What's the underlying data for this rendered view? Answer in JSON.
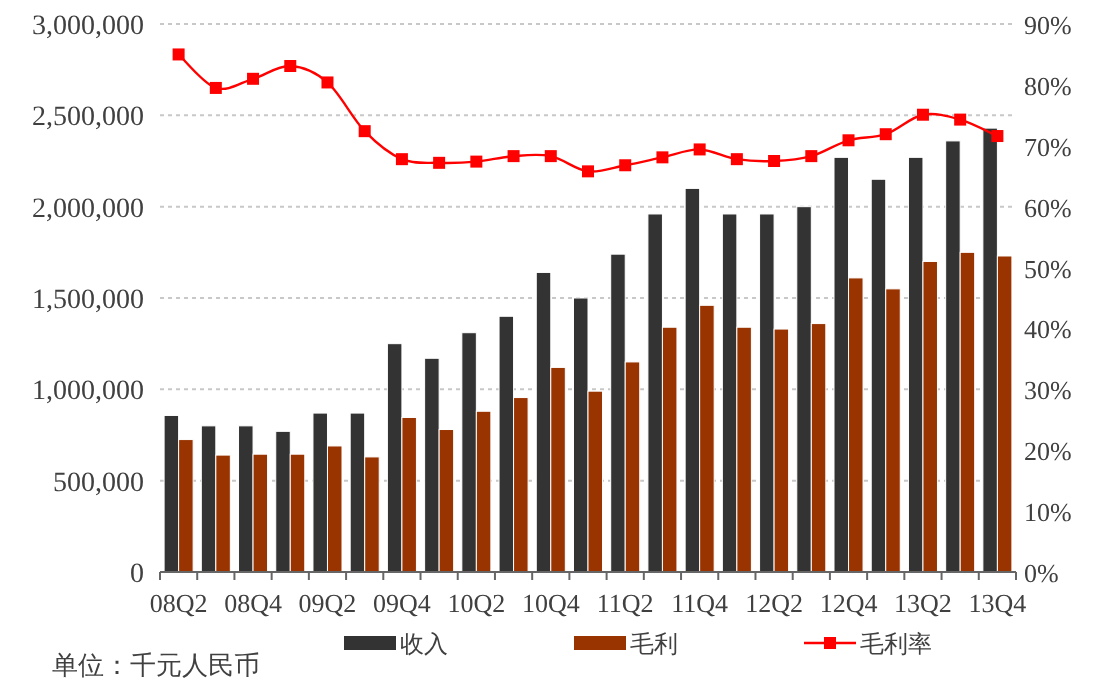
{
  "chart_data": {
    "type": "bar",
    "categories": [
      "08Q2",
      null,
      "08Q4",
      null,
      "09Q2",
      null,
      "09Q4",
      null,
      "10Q2",
      null,
      "10Q4",
      null,
      "11Q2",
      null,
      "11Q4",
      null,
      "12Q2",
      null,
      "12Q4",
      null,
      "13Q2",
      null,
      "13Q4"
    ],
    "series": [
      {
        "name": "收入",
        "color": "#333333",
        "values": [
          857000,
          800000,
          800000,
          770000,
          870000,
          870000,
          1250000,
          1170000,
          1310000,
          1400000,
          1640000,
          1500000,
          1740000,
          1960000,
          2100000,
          1960000,
          1960000,
          2000000,
          2270000,
          2150000,
          2270000,
          2360000,
          2430000
        ]
      },
      {
        "name": "毛利",
        "color": "#993300",
        "values": [
          725000,
          640000,
          645000,
          645000,
          690000,
          630000,
          846000,
          780000,
          880000,
          955000,
          1120000,
          990000,
          1150000,
          1340000,
          1460000,
          1340000,
          1330000,
          1360000,
          1610000,
          1550000,
          1700000,
          1750000,
          1730000
        ]
      },
      {
        "name": "毛利率",
        "type": "line",
        "axis": "y2",
        "color": "#ff0000",
        "marker": "square",
        "values": [
          85.0,
          79.5,
          81.0,
          83.1,
          80.4,
          72.4,
          67.8,
          67.2,
          67.4,
          68.3,
          68.3,
          65.8,
          66.8,
          68.1,
          69.4,
          67.8,
          67.5,
          68.3,
          70.9,
          71.9,
          75.1,
          74.3,
          71.6
        ]
      }
    ],
    "ylim": [
      0,
      3000000
    ],
    "yticks": [
      0,
      {
        "value": 500000,
        "label": "500,000"
      },
      {
        "value": 1000000,
        "label": "1,000,000"
      },
      {
        "value": 1500000,
        "label": "1,500,000"
      },
      {
        "value": 2000000,
        "label": "2,000,000"
      },
      {
        "value": 2500000,
        "label": "2,500,000"
      },
      {
        "value": 3000000,
        "label": "3,000,000"
      }
    ],
    "y2lim": [
      0,
      90
    ],
    "y2ticks": [
      {
        "value": 0,
        "label": "0%"
      },
      {
        "value": 10,
        "label": "10%"
      },
      {
        "value": 20,
        "label": "20%"
      },
      {
        "value": 30,
        "label": "30%"
      },
      {
        "value": 40,
        "label": "40%"
      },
      {
        "value": 50,
        "label": "50%"
      },
      {
        "value": 60,
        "label": "60%"
      },
      {
        "value": 70,
        "label": "70%"
      },
      {
        "value": 80,
        "label": "80%"
      },
      {
        "value": 90,
        "label": "90%"
      }
    ],
    "grid": "y",
    "legend": "bottom",
    "annotations": [
      "单位：千元人民币"
    ]
  }
}
